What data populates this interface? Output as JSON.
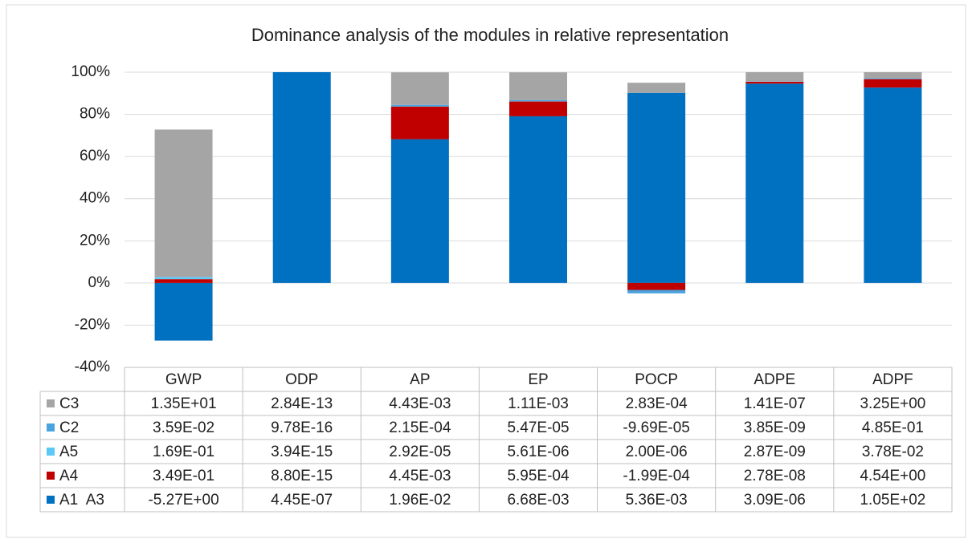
{
  "chart_data": {
    "type": "bar",
    "stacked": true,
    "title": "Dominance analysis of the modules in relative representation",
    "categories": [
      "GWP",
      "ODP",
      "AP",
      "EP",
      "POCP",
      "ADPE",
      "ADPF"
    ],
    "ylim": [
      -40,
      100
    ],
    "yticks": [
      {
        "value": -40,
        "label": "-40%"
      },
      {
        "value": -20,
        "label": "-20%"
      },
      {
        "value": 0,
        "label": "0%"
      },
      {
        "value": 20,
        "label": "20%"
      },
      {
        "value": 40,
        "label": "40%"
      },
      {
        "value": 60,
        "label": "60%"
      },
      {
        "value": 80,
        "label": "80%"
      },
      {
        "value": 100,
        "label": "100%"
      }
    ],
    "grid": true,
    "series": [
      {
        "name": "C3",
        "color": "#a5a5a5",
        "values": [
          69.9,
          0,
          15.4,
          13.1,
          4.8,
          4.3,
          2.9
        ],
        "table": [
          "1.35E+01",
          "2.84E-13",
          "4.43E-03",
          "1.11E-03",
          "2.83E-04",
          "1.41E-07",
          "3.25E+00"
        ]
      },
      {
        "name": "C2",
        "color": "#4aa3df",
        "values": [
          0.2,
          0,
          0.7,
          0.6,
          -1.6,
          0.1,
          0.4
        ],
        "table": [
          "3.59E-02",
          "9.78E-16",
          "2.15E-04",
          "5.47E-05",
          "-9.69E-05",
          "3.85E-09",
          "4.85E-01"
        ]
      },
      {
        "name": "A5",
        "color": "#5bc8f5",
        "values": [
          0.9,
          0,
          0.1,
          0.1,
          0.0,
          0.1,
          0.0
        ],
        "table": [
          "1.69E-01",
          "3.94E-15",
          "2.92E-05",
          "5.61E-06",
          "2.00E-06",
          "2.87E-09",
          "3.78E-02"
        ]
      },
      {
        "name": "A4",
        "color": "#c00000",
        "values": [
          1.8,
          0,
          15.5,
          7.0,
          -3.3,
          0.9,
          4.0
        ],
        "table": [
          "3.49E-01",
          "8.80E-15",
          "4.45E-03",
          "5.95E-04",
          "-1.99E-04",
          "2.78E-08",
          "4.54E+00"
        ]
      },
      {
        "name": "A1  A3",
        "color": "#0070c0",
        "values": [
          -27.3,
          100,
          68.2,
          79.1,
          90.2,
          94.6,
          92.7
        ],
        "table": [
          "-5.27E+00",
          "4.45E-07",
          "1.96E-02",
          "6.68E-03",
          "5.36E-03",
          "3.09E-06",
          "1.05E+02"
        ]
      }
    ]
  }
}
